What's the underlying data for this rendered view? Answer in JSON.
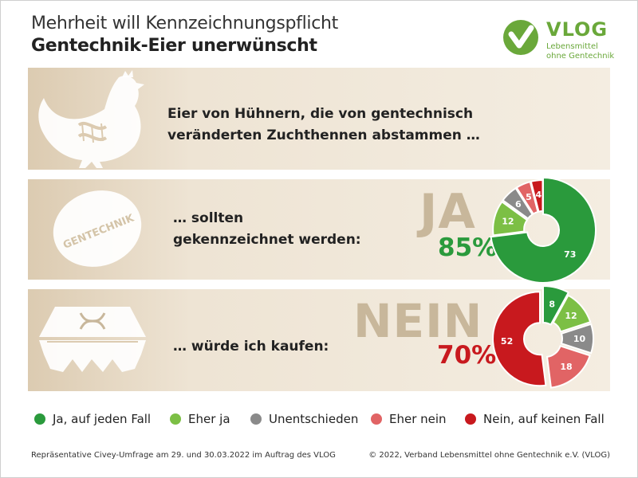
{
  "header": {
    "title_line1": "Mehrheit will Kennzeichnungspflicht",
    "title_line2": "Gentechnik-Eier unerwünscht"
  },
  "logo": {
    "name": "VLOG",
    "subtitle_line1": "Lebensmittel",
    "subtitle_line2": "ohne Gentechnik",
    "color": "#6aa83a"
  },
  "statements": {
    "intro_line1": "Eier von Hühnern, die von gentechnisch",
    "intro_line2": "veränderten Zuchthennen abstammen …",
    "q1_line1": "… sollten",
    "q1_line2": "gekennzeichnet werden:",
    "q2_line1": "… würde ich kaufen:"
  },
  "egg_stamp": "GENTECHNIK",
  "icons": [
    "chicken-icon",
    "egg-icon",
    "egg-carton-icon",
    "dna-icon"
  ],
  "chart_data": [
    {
      "type": "pie",
      "variant": "donut",
      "headline": "JA",
      "headline_percent": "85%",
      "categories": [
        "Ja, auf jeden Fall",
        "Eher ja",
        "Unentschieden",
        "Eher nein",
        "Nein, auf keinen Fall"
      ],
      "values": [
        73,
        12,
        6,
        5,
        4
      ],
      "colors": [
        "#2a9a3c",
        "#7cbf45",
        "#8a8a8a",
        "#e16465",
        "#c8191e"
      ]
    },
    {
      "type": "pie",
      "variant": "donut",
      "headline": "NEIN",
      "headline_percent": "70%",
      "categories": [
        "Ja, auf jeden Fall",
        "Eher ja",
        "Unentschieden",
        "Eher nein",
        "Nein, auf keinen Fall"
      ],
      "values": [
        8,
        12,
        10,
        18,
        52
      ],
      "colors": [
        "#2a9a3c",
        "#7cbf45",
        "#8a8a8a",
        "#e16465",
        "#c8191e"
      ]
    }
  ],
  "legend": {
    "items": [
      {
        "label": "Ja, auf jeden Fall",
        "color": "#2a9a3c"
      },
      {
        "label": "Eher ja",
        "color": "#7cbf45"
      },
      {
        "label": "Unentschieden",
        "color": "#8a8a8a"
      },
      {
        "label": "Eher nein",
        "color": "#e16465"
      },
      {
        "label": "Nein, auf keinen Fall",
        "color": "#c8191e"
      }
    ]
  },
  "footer": {
    "source": "Repräsentative Civey-Umfrage am 29. und 30.03.2022 im Auftrag des VLOG",
    "copyright": "© 2022, Verband Lebensmittel ohne Gentechnik e.V. (VLOG)"
  }
}
